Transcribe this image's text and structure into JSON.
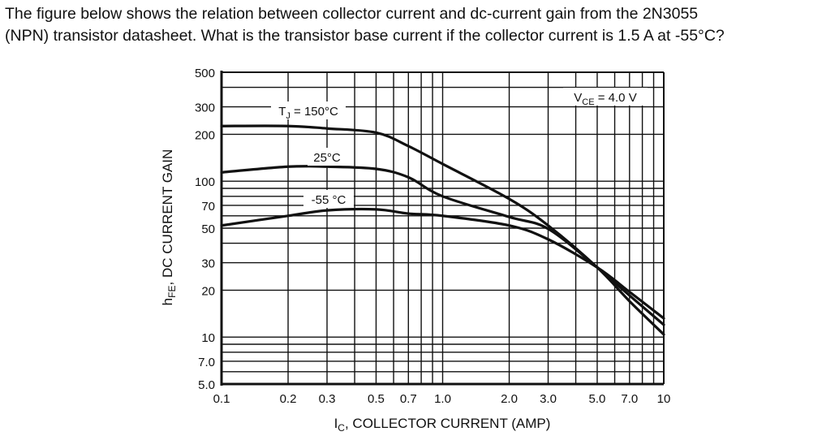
{
  "question": {
    "line1": "The figure below shows the relation between collector current and dc-current gain from the 2N3055",
    "line2": "(NPN) transistor datasheet. What is the transistor base current if the collector current is 1.5 A at -55°C?"
  },
  "chart_data": {
    "type": "line",
    "xlabel": "I_C, COLLECTOR CURRENT (AMP)",
    "xlabel_main": "I",
    "xlabel_sub": "C",
    "xlabel_rest": ", COLLECTOR CURRENT (AMP)",
    "ylabel": "h_FE, DC CURRENT GAIN",
    "ylabel_main": "h",
    "ylabel_sub": "FE",
    "ylabel_rest": ", DC CURRENT GAIN",
    "xscale": "log",
    "yscale": "log",
    "xlim": [
      0.1,
      10
    ],
    "ylim": [
      5,
      500
    ],
    "grid": true,
    "x_ticks": [
      "0.1",
      "0.2",
      "0.3",
      "0.5",
      "0.7",
      "1.0",
      "2.0",
      "3.0",
      "5.0",
      "7.0",
      "10"
    ],
    "y_ticks": [
      "500",
      "300",
      "200",
      "100",
      "70",
      "50",
      "30",
      "20",
      "10",
      "7.0",
      "5.0"
    ],
    "annotations": {
      "vce": "V_CE = 4.0 V",
      "vce_main": "V",
      "vce_sub": "CE",
      "vce_rest": " = 4.0 V"
    },
    "series": [
      {
        "name": "T_J = 150°C",
        "label_main": "T",
        "label_sub": "J",
        "label_rest": " = 150°C",
        "x": [
          0.1,
          0.2,
          0.3,
          0.5,
          0.7,
          1.0,
          2.0,
          3.0,
          5.0,
          7.0,
          10
        ],
        "y": [
          226,
          226,
          218,
          205,
          168,
          129,
          77,
          52,
          28,
          17,
          10.4
        ]
      },
      {
        "name": "25°C",
        "label_main": "25°C",
        "label_sub": "",
        "label_rest": "",
        "x": [
          0.1,
          0.2,
          0.3,
          0.5,
          0.7,
          1.0,
          2.0,
          3.0,
          5.0,
          7.0,
          10
        ],
        "y": [
          114,
          124,
          124,
          120,
          106,
          80,
          59,
          49.5,
          28,
          18.5,
          12
        ]
      },
      {
        "name": "-55 °C",
        "label_main": "-55 °C",
        "label_sub": "",
        "label_rest": "",
        "x": [
          0.1,
          0.2,
          0.3,
          0.5,
          0.7,
          1.0,
          2.0,
          3.0,
          5.0,
          7.0,
          10
        ],
        "y": [
          52,
          60,
          65,
          66,
          62,
          60,
          52,
          42.4,
          28,
          19.5,
          13.2
        ]
      }
    ]
  }
}
